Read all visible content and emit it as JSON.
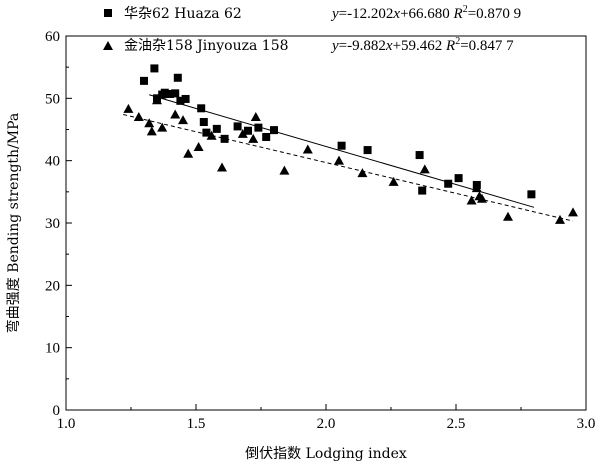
{
  "chart_data": {
    "type": "scatter",
    "xlabel": "倒伏指数 Lodging index",
    "ylabel": "弯曲强度 Bending strength/MPa",
    "xlim": [
      1.0,
      3.0
    ],
    "ylim": [
      0,
      60
    ],
    "xticks": [
      "1.0",
      "1.5",
      "2.0",
      "2.5",
      "3.0"
    ],
    "yticks": [
      "0",
      "10",
      "20",
      "30",
      "40",
      "50",
      "60"
    ],
    "grid": false,
    "legend_position": "top-left",
    "series": [
      {
        "name": "华杂62 Huaza 62",
        "marker": "square",
        "color": "#000000",
        "equation_prefix": "y",
        "equation_body": "=-12.202",
        "equation_x": "x",
        "equation_rest": "+66.680 ",
        "r2_label": "R",
        "r2_sup": "2",
        "r2_value": "=0.870 9",
        "fit": {
          "slope": -12.202,
          "intercept": 66.68,
          "x_range": [
            1.32,
            2.8
          ],
          "style": "solid"
        },
        "points": [
          {
            "x": 1.3,
            "y": 52.8
          },
          {
            "x": 1.34,
            "y": 54.8
          },
          {
            "x": 1.35,
            "y": 50.0
          },
          {
            "x": 1.37,
            "y": 50.6
          },
          {
            "x": 1.38,
            "y": 50.9
          },
          {
            "x": 1.4,
            "y": 50.7
          },
          {
            "x": 1.42,
            "y": 50.8
          },
          {
            "x": 1.43,
            "y": 53.3
          },
          {
            "x": 1.44,
            "y": 49.6
          },
          {
            "x": 1.46,
            "y": 49.9
          },
          {
            "x": 1.52,
            "y": 48.4
          },
          {
            "x": 1.53,
            "y": 46.2
          },
          {
            "x": 1.54,
            "y": 44.5
          },
          {
            "x": 1.58,
            "y": 45.1
          },
          {
            "x": 1.61,
            "y": 43.5
          },
          {
            "x": 1.66,
            "y": 45.5
          },
          {
            "x": 1.7,
            "y": 44.8
          },
          {
            "x": 1.74,
            "y": 45.3
          },
          {
            "x": 1.77,
            "y": 43.8
          },
          {
            "x": 1.8,
            "y": 44.9
          },
          {
            "x": 2.06,
            "y": 42.4
          },
          {
            "x": 2.16,
            "y": 41.7
          },
          {
            "x": 2.36,
            "y": 40.9
          },
          {
            "x": 2.37,
            "y": 35.2
          },
          {
            "x": 2.47,
            "y": 36.3
          },
          {
            "x": 2.51,
            "y": 37.2
          },
          {
            "x": 2.58,
            "y": 36.1
          },
          {
            "x": 2.79,
            "y": 34.6
          }
        ]
      },
      {
        "name": "金油杂158 Jinyouza 158",
        "marker": "triangle",
        "color": "#000000",
        "equation_prefix": "y",
        "equation_body": "=-9.882",
        "equation_x": "x",
        "equation_rest": "+59.462 ",
        "r2_label": "R",
        "r2_sup": "2",
        "r2_value": "=0.847 7",
        "fit": {
          "slope": -9.882,
          "intercept": 59.462,
          "x_range": [
            1.22,
            2.95
          ],
          "style": "dashed"
        },
        "points": [
          {
            "x": 1.24,
            "y": 48.3
          },
          {
            "x": 1.28,
            "y": 47.0
          },
          {
            "x": 1.32,
            "y": 46.0
          },
          {
            "x": 1.33,
            "y": 44.7
          },
          {
            "x": 1.35,
            "y": 49.7
          },
          {
            "x": 1.37,
            "y": 45.3
          },
          {
            "x": 1.42,
            "y": 47.4
          },
          {
            "x": 1.45,
            "y": 46.5
          },
          {
            "x": 1.47,
            "y": 41.1
          },
          {
            "x": 1.51,
            "y": 42.2
          },
          {
            "x": 1.56,
            "y": 44.0
          },
          {
            "x": 1.6,
            "y": 38.9
          },
          {
            "x": 1.68,
            "y": 44.3
          },
          {
            "x": 1.72,
            "y": 43.5
          },
          {
            "x": 1.73,
            "y": 47.0
          },
          {
            "x": 1.84,
            "y": 38.4
          },
          {
            "x": 1.93,
            "y": 41.8
          },
          {
            "x": 2.05,
            "y": 40.0
          },
          {
            "x": 2.14,
            "y": 38.0
          },
          {
            "x": 2.26,
            "y": 36.6
          },
          {
            "x": 2.38,
            "y": 38.6
          },
          {
            "x": 2.56,
            "y": 33.6
          },
          {
            "x": 2.58,
            "y": 35.6
          },
          {
            "x": 2.59,
            "y": 34.3
          },
          {
            "x": 2.6,
            "y": 33.9
          },
          {
            "x": 2.7,
            "y": 31.0
          },
          {
            "x": 2.9,
            "y": 30.5
          },
          {
            "x": 2.95,
            "y": 31.7
          }
        ]
      }
    ]
  }
}
